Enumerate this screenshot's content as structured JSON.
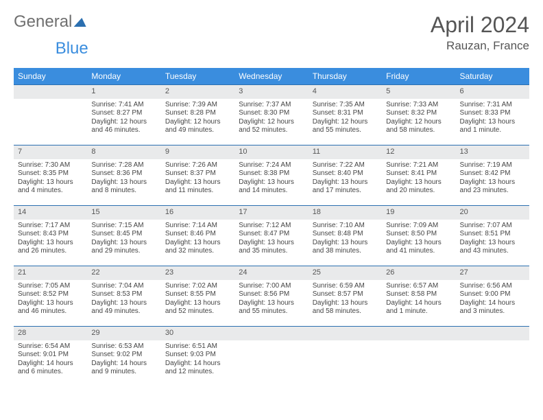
{
  "logo": {
    "part1": "General",
    "part2": "Blue"
  },
  "title": "April 2024",
  "location": "Rauzan, France",
  "weekdays": [
    "Sunday",
    "Monday",
    "Tuesday",
    "Wednesday",
    "Thursday",
    "Friday",
    "Saturday"
  ],
  "colors": {
    "header_bg": "#3a8dde",
    "daybar_bg": "#e9eaeb",
    "daybar_border": "#2b6fb0",
    "text": "#444444",
    "title_text": "#555555"
  },
  "grid": [
    [
      {
        "n": "",
        "lines": []
      },
      {
        "n": "1",
        "lines": [
          "Sunrise: 7:41 AM",
          "Sunset: 8:27 PM",
          "Daylight: 12 hours",
          "and 46 minutes."
        ]
      },
      {
        "n": "2",
        "lines": [
          "Sunrise: 7:39 AM",
          "Sunset: 8:28 PM",
          "Daylight: 12 hours",
          "and 49 minutes."
        ]
      },
      {
        "n": "3",
        "lines": [
          "Sunrise: 7:37 AM",
          "Sunset: 8:30 PM",
          "Daylight: 12 hours",
          "and 52 minutes."
        ]
      },
      {
        "n": "4",
        "lines": [
          "Sunrise: 7:35 AM",
          "Sunset: 8:31 PM",
          "Daylight: 12 hours",
          "and 55 minutes."
        ]
      },
      {
        "n": "5",
        "lines": [
          "Sunrise: 7:33 AM",
          "Sunset: 8:32 PM",
          "Daylight: 12 hours",
          "and 58 minutes."
        ]
      },
      {
        "n": "6",
        "lines": [
          "Sunrise: 7:31 AM",
          "Sunset: 8:33 PM",
          "Daylight: 13 hours",
          "and 1 minute."
        ]
      }
    ],
    [
      {
        "n": "7",
        "lines": [
          "Sunrise: 7:30 AM",
          "Sunset: 8:35 PM",
          "Daylight: 13 hours",
          "and 4 minutes."
        ]
      },
      {
        "n": "8",
        "lines": [
          "Sunrise: 7:28 AM",
          "Sunset: 8:36 PM",
          "Daylight: 13 hours",
          "and 8 minutes."
        ]
      },
      {
        "n": "9",
        "lines": [
          "Sunrise: 7:26 AM",
          "Sunset: 8:37 PM",
          "Daylight: 13 hours",
          "and 11 minutes."
        ]
      },
      {
        "n": "10",
        "lines": [
          "Sunrise: 7:24 AM",
          "Sunset: 8:38 PM",
          "Daylight: 13 hours",
          "and 14 minutes."
        ]
      },
      {
        "n": "11",
        "lines": [
          "Sunrise: 7:22 AM",
          "Sunset: 8:40 PM",
          "Daylight: 13 hours",
          "and 17 minutes."
        ]
      },
      {
        "n": "12",
        "lines": [
          "Sunrise: 7:21 AM",
          "Sunset: 8:41 PM",
          "Daylight: 13 hours",
          "and 20 minutes."
        ]
      },
      {
        "n": "13",
        "lines": [
          "Sunrise: 7:19 AM",
          "Sunset: 8:42 PM",
          "Daylight: 13 hours",
          "and 23 minutes."
        ]
      }
    ],
    [
      {
        "n": "14",
        "lines": [
          "Sunrise: 7:17 AM",
          "Sunset: 8:43 PM",
          "Daylight: 13 hours",
          "and 26 minutes."
        ]
      },
      {
        "n": "15",
        "lines": [
          "Sunrise: 7:15 AM",
          "Sunset: 8:45 PM",
          "Daylight: 13 hours",
          "and 29 minutes."
        ]
      },
      {
        "n": "16",
        "lines": [
          "Sunrise: 7:14 AM",
          "Sunset: 8:46 PM",
          "Daylight: 13 hours",
          "and 32 minutes."
        ]
      },
      {
        "n": "17",
        "lines": [
          "Sunrise: 7:12 AM",
          "Sunset: 8:47 PM",
          "Daylight: 13 hours",
          "and 35 minutes."
        ]
      },
      {
        "n": "18",
        "lines": [
          "Sunrise: 7:10 AM",
          "Sunset: 8:48 PM",
          "Daylight: 13 hours",
          "and 38 minutes."
        ]
      },
      {
        "n": "19",
        "lines": [
          "Sunrise: 7:09 AM",
          "Sunset: 8:50 PM",
          "Daylight: 13 hours",
          "and 41 minutes."
        ]
      },
      {
        "n": "20",
        "lines": [
          "Sunrise: 7:07 AM",
          "Sunset: 8:51 PM",
          "Daylight: 13 hours",
          "and 43 minutes."
        ]
      }
    ],
    [
      {
        "n": "21",
        "lines": [
          "Sunrise: 7:05 AM",
          "Sunset: 8:52 PM",
          "Daylight: 13 hours",
          "and 46 minutes."
        ]
      },
      {
        "n": "22",
        "lines": [
          "Sunrise: 7:04 AM",
          "Sunset: 8:53 PM",
          "Daylight: 13 hours",
          "and 49 minutes."
        ]
      },
      {
        "n": "23",
        "lines": [
          "Sunrise: 7:02 AM",
          "Sunset: 8:55 PM",
          "Daylight: 13 hours",
          "and 52 minutes."
        ]
      },
      {
        "n": "24",
        "lines": [
          "Sunrise: 7:00 AM",
          "Sunset: 8:56 PM",
          "Daylight: 13 hours",
          "and 55 minutes."
        ]
      },
      {
        "n": "25",
        "lines": [
          "Sunrise: 6:59 AM",
          "Sunset: 8:57 PM",
          "Daylight: 13 hours",
          "and 58 minutes."
        ]
      },
      {
        "n": "26",
        "lines": [
          "Sunrise: 6:57 AM",
          "Sunset: 8:58 PM",
          "Daylight: 14 hours",
          "and 1 minute."
        ]
      },
      {
        "n": "27",
        "lines": [
          "Sunrise: 6:56 AM",
          "Sunset: 9:00 PM",
          "Daylight: 14 hours",
          "and 3 minutes."
        ]
      }
    ],
    [
      {
        "n": "28",
        "lines": [
          "Sunrise: 6:54 AM",
          "Sunset: 9:01 PM",
          "Daylight: 14 hours",
          "and 6 minutes."
        ]
      },
      {
        "n": "29",
        "lines": [
          "Sunrise: 6:53 AM",
          "Sunset: 9:02 PM",
          "Daylight: 14 hours",
          "and 9 minutes."
        ]
      },
      {
        "n": "30",
        "lines": [
          "Sunrise: 6:51 AM",
          "Sunset: 9:03 PM",
          "Daylight: 14 hours",
          "and 12 minutes."
        ]
      },
      {
        "n": "",
        "lines": []
      },
      {
        "n": "",
        "lines": []
      },
      {
        "n": "",
        "lines": []
      },
      {
        "n": "",
        "lines": []
      }
    ]
  ]
}
